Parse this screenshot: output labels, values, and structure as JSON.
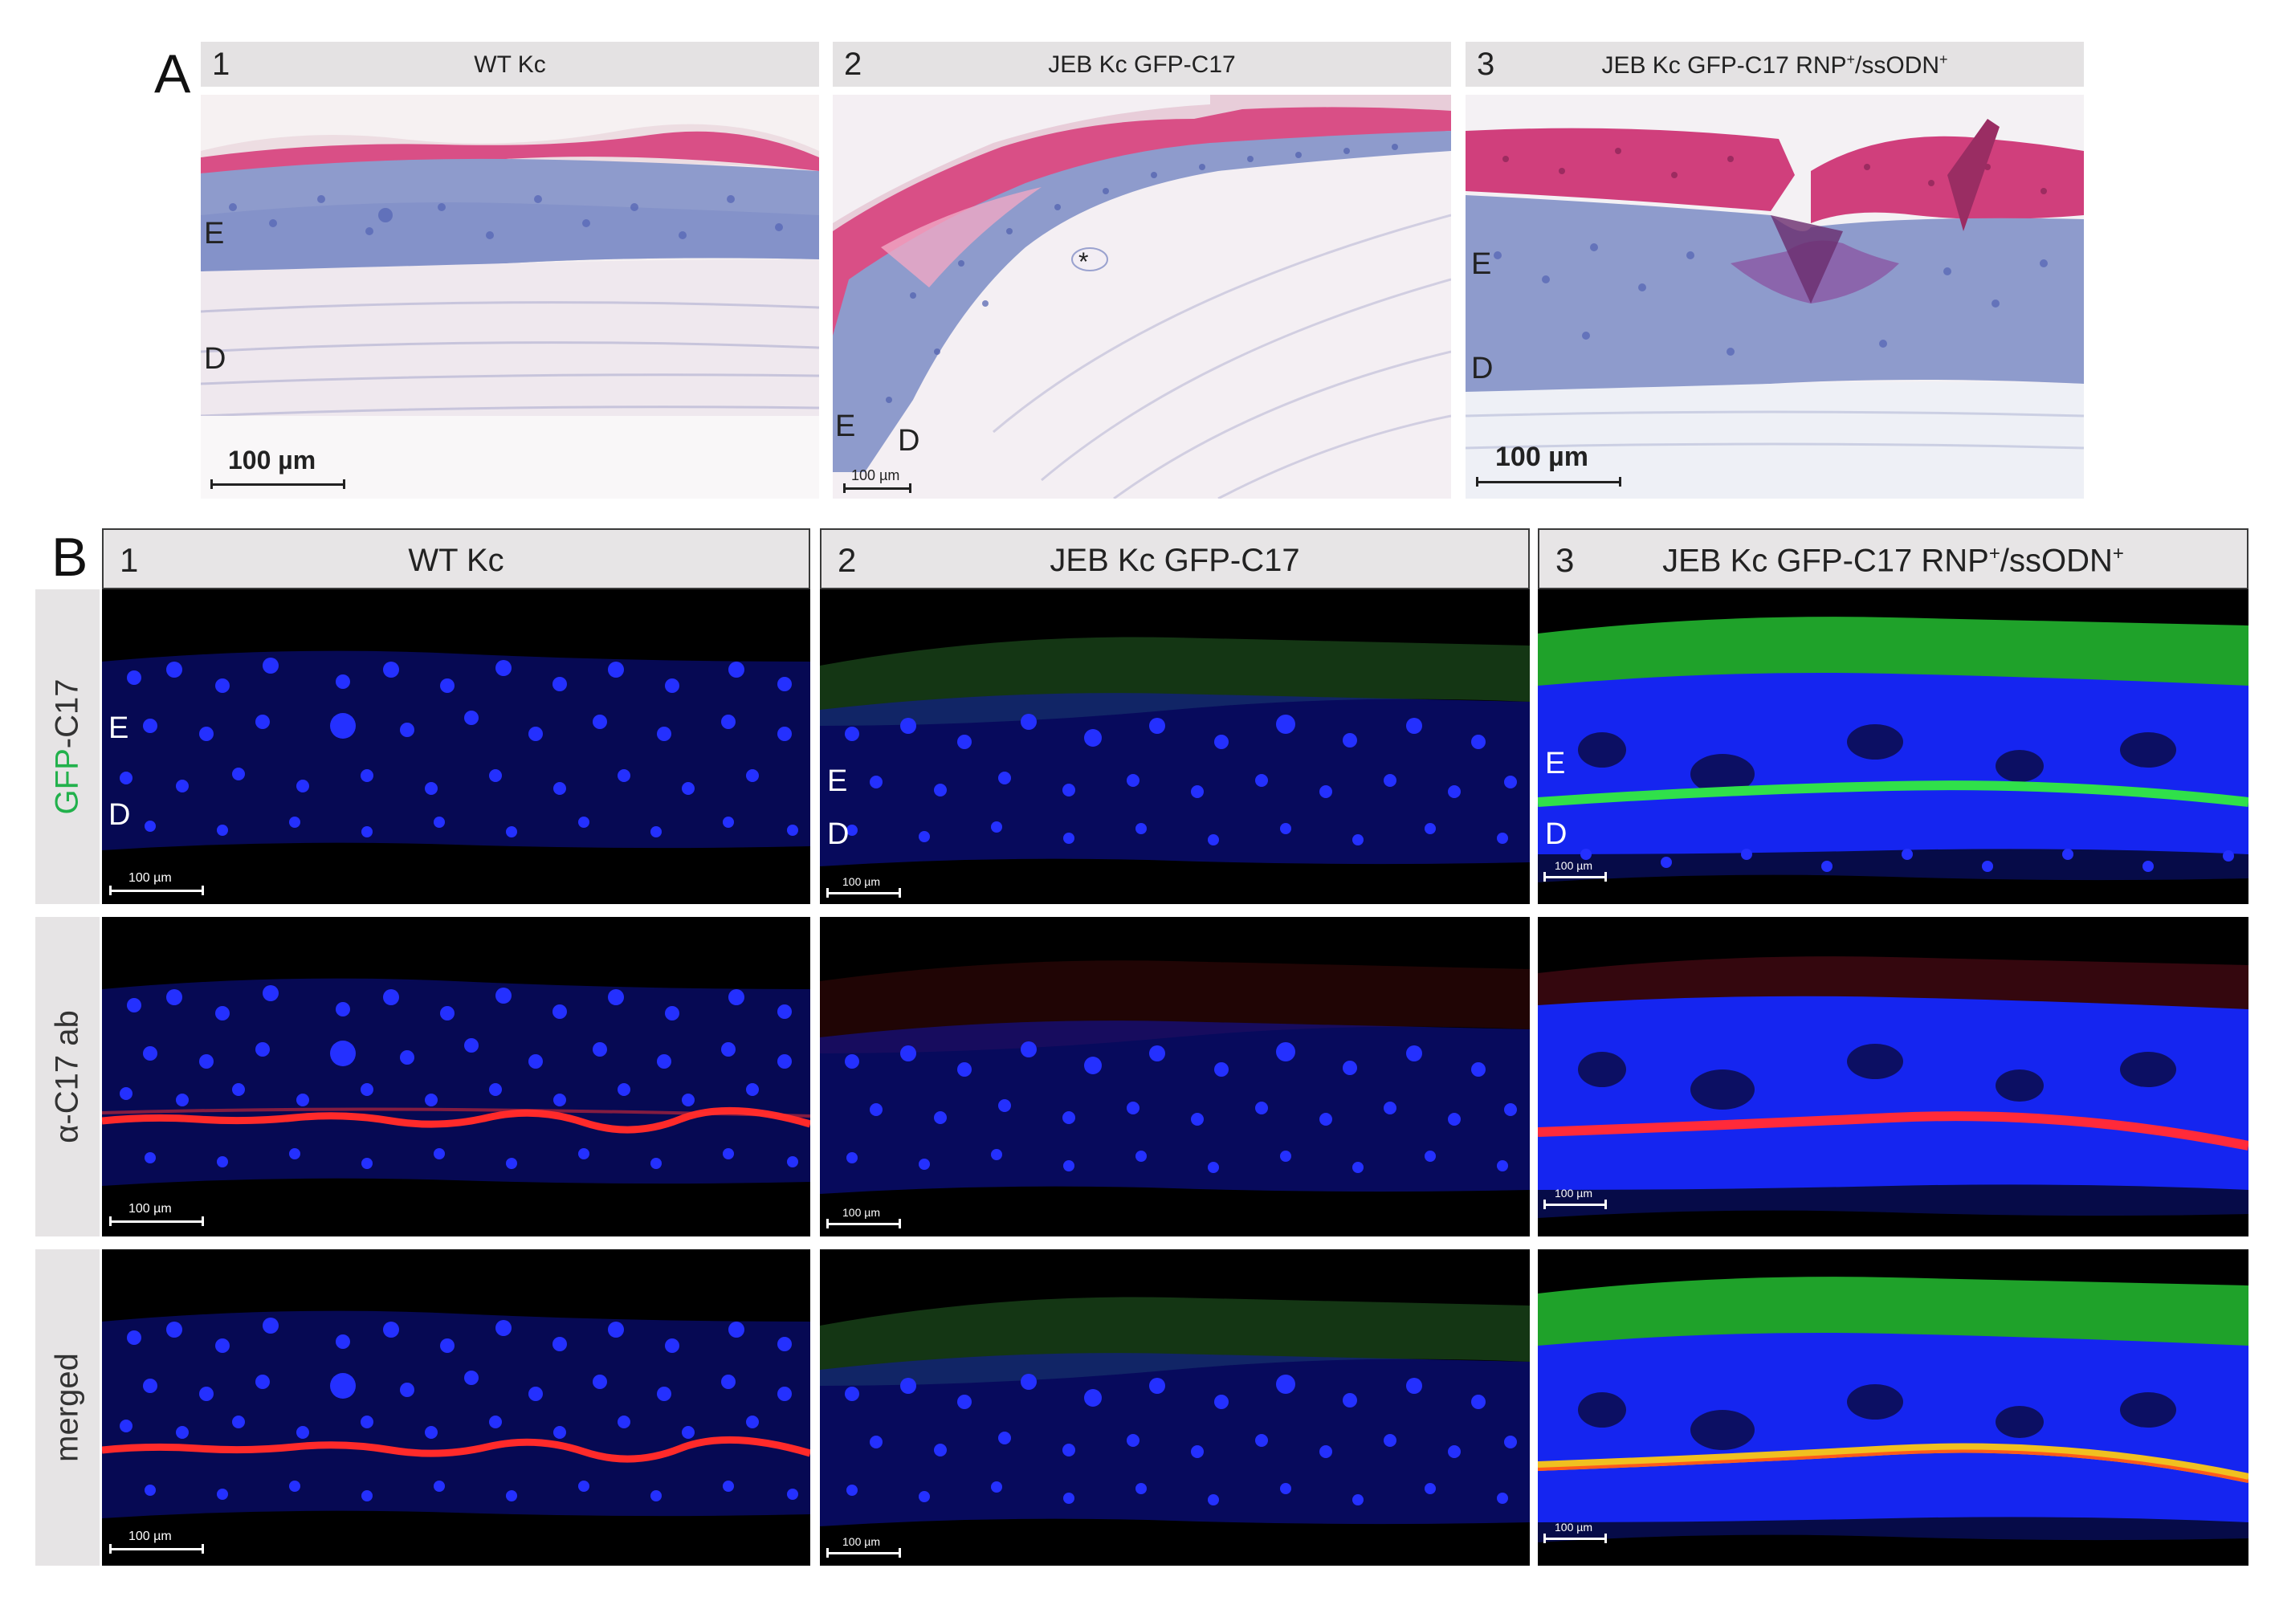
{
  "panel_a": {
    "letter": "A",
    "columns": [
      {
        "number": "1",
        "title": "WT Kc",
        "labels": [
          "E",
          "D"
        ],
        "scale_label": "100 µm"
      },
      {
        "number": "2",
        "title": "JEB Kc GFP-C17",
        "labels": [
          "E",
          "D",
          "*"
        ],
        "scale_label": "100 µm"
      },
      {
        "number": "3",
        "title_main": "JEB Kc GFP-C17 RNP",
        "title_sup1": "+",
        "title_mid": "/ssODN",
        "title_sup2": "+",
        "labels": [
          "E",
          "D"
        ],
        "scale_label": "100 µm"
      }
    ]
  },
  "panel_b": {
    "letter": "B",
    "columns": [
      {
        "number": "1",
        "title": "WT Kc"
      },
      {
        "number": "2",
        "title": "JEB Kc GFP-C17"
      },
      {
        "number": "3",
        "title_main": "JEB Kc GFP-C17 RNP",
        "title_sup1": "+",
        "title_mid": "/ssODN",
        "title_sup2": "+"
      }
    ],
    "rows": [
      {
        "label_green": "GFP",
        "label_rest": "-C17"
      },
      {
        "label": "α-C17 ab"
      },
      {
        "label": "merged"
      }
    ],
    "layer_labels": [
      "E",
      "D"
    ],
    "scale_label": "100 µm"
  },
  "colors": {
    "he_pink": "#d94f86",
    "he_purple": "#8e9bcc",
    "dapi_blue": "#1f2cff",
    "gfp_green": "#22b14c",
    "c17_red": "#ff2020",
    "header_grey": "#e4e2e3"
  }
}
